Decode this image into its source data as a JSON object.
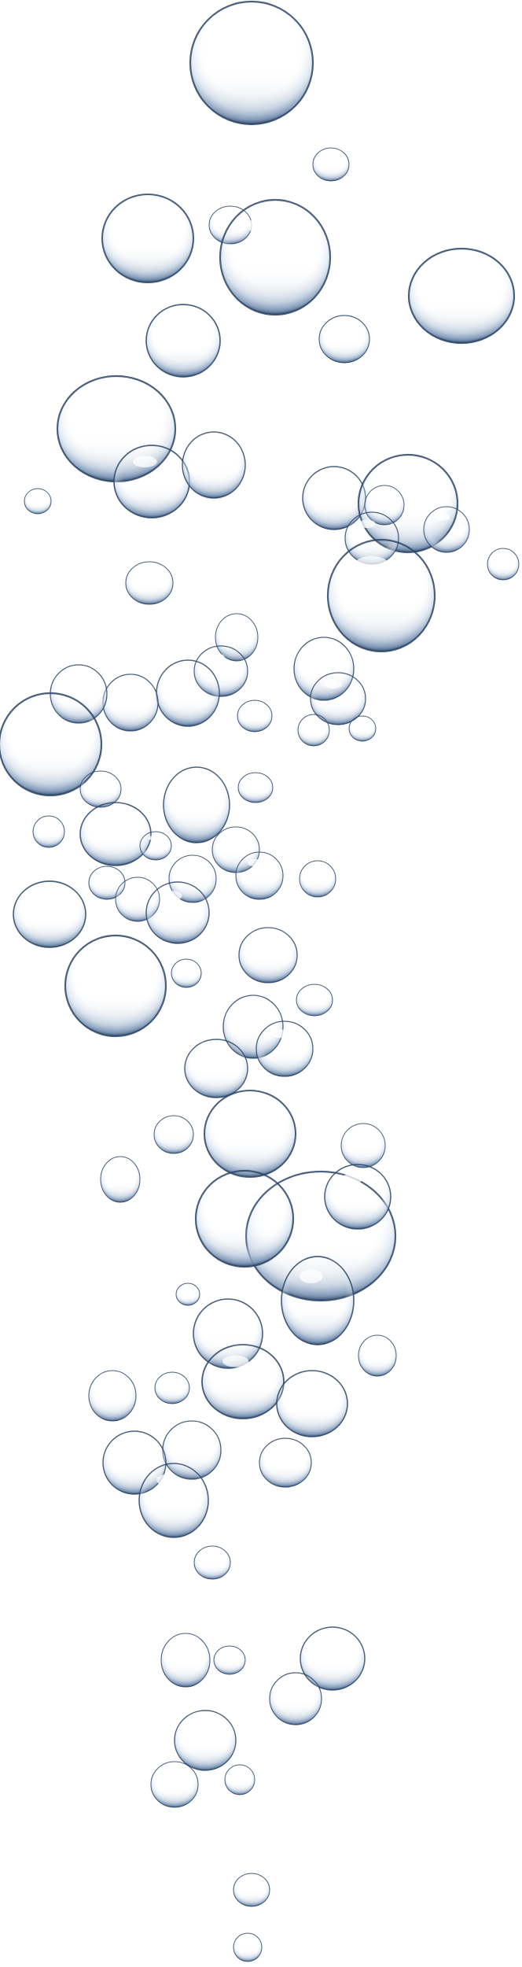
{
  "image": {
    "subject": "bubbles",
    "background_color": "#ffffff",
    "bubble_rim_color": "#2c4566",
    "bubble_fill_color": "#ffffff",
    "bubble_shade_color": "#8fa7c3"
  }
}
